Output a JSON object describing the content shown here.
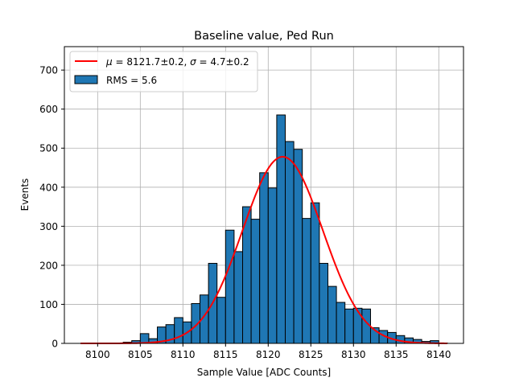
{
  "chart_data": {
    "type": "bar",
    "title": "Baseline value, Ped Run",
    "xlabel": "Sample Value [ADC Counts]",
    "ylabel": "Events",
    "xlim": [
      8096.1,
      8142.9
    ],
    "ylim": [
      0,
      760
    ],
    "xticks": [
      8100,
      8105,
      8110,
      8115,
      8120,
      8125,
      8130,
      8135,
      8140
    ],
    "yticks": [
      0,
      100,
      200,
      300,
      400,
      500,
      600,
      700
    ],
    "grid": true,
    "legend_position": "top-left",
    "bin_width": 1,
    "histogram": {
      "name": "RMS = 5.6",
      "color": "#1f77b4",
      "bin_starts": [
        8103,
        8104,
        8105,
        8106,
        8107,
        8108,
        8109,
        8110,
        8111,
        8112,
        8113,
        8114,
        8115,
        8116,
        8117,
        8118,
        8119,
        8120,
        8121,
        8122,
        8123,
        8124,
        8125,
        8126,
        8127,
        8128,
        8129,
        8130,
        8131,
        8132,
        8133,
        8134,
        8135,
        8136,
        8137,
        8138,
        8139,
        8140
      ],
      "values": [
        3,
        7,
        25,
        12,
        42,
        48,
        66,
        55,
        102,
        124,
        205,
        118,
        290,
        235,
        350,
        318,
        437,
        398,
        585,
        517,
        497,
        320,
        360,
        205,
        146,
        105,
        88,
        90,
        88,
        40,
        33,
        28,
        20,
        14,
        10,
        5,
        7,
        1
      ]
    },
    "fit": {
      "name": "$\\mu = 8121.7\\pm0.2$, $\\sigma = 4.7\\pm0.2$",
      "color": "#ff0000",
      "mu": 8121.7,
      "sigma": 4.7,
      "amplitude": 478,
      "x_range": [
        8098,
        8141
      ]
    }
  },
  "legend": {
    "fit_mu_symbol": "μ",
    "fit_mu_text": " = 8121.7±0.2, ",
    "fit_sigma_symbol": "σ",
    "fit_sigma_text": " = 4.7±0.2",
    "hist_label": "RMS = 5.6"
  }
}
